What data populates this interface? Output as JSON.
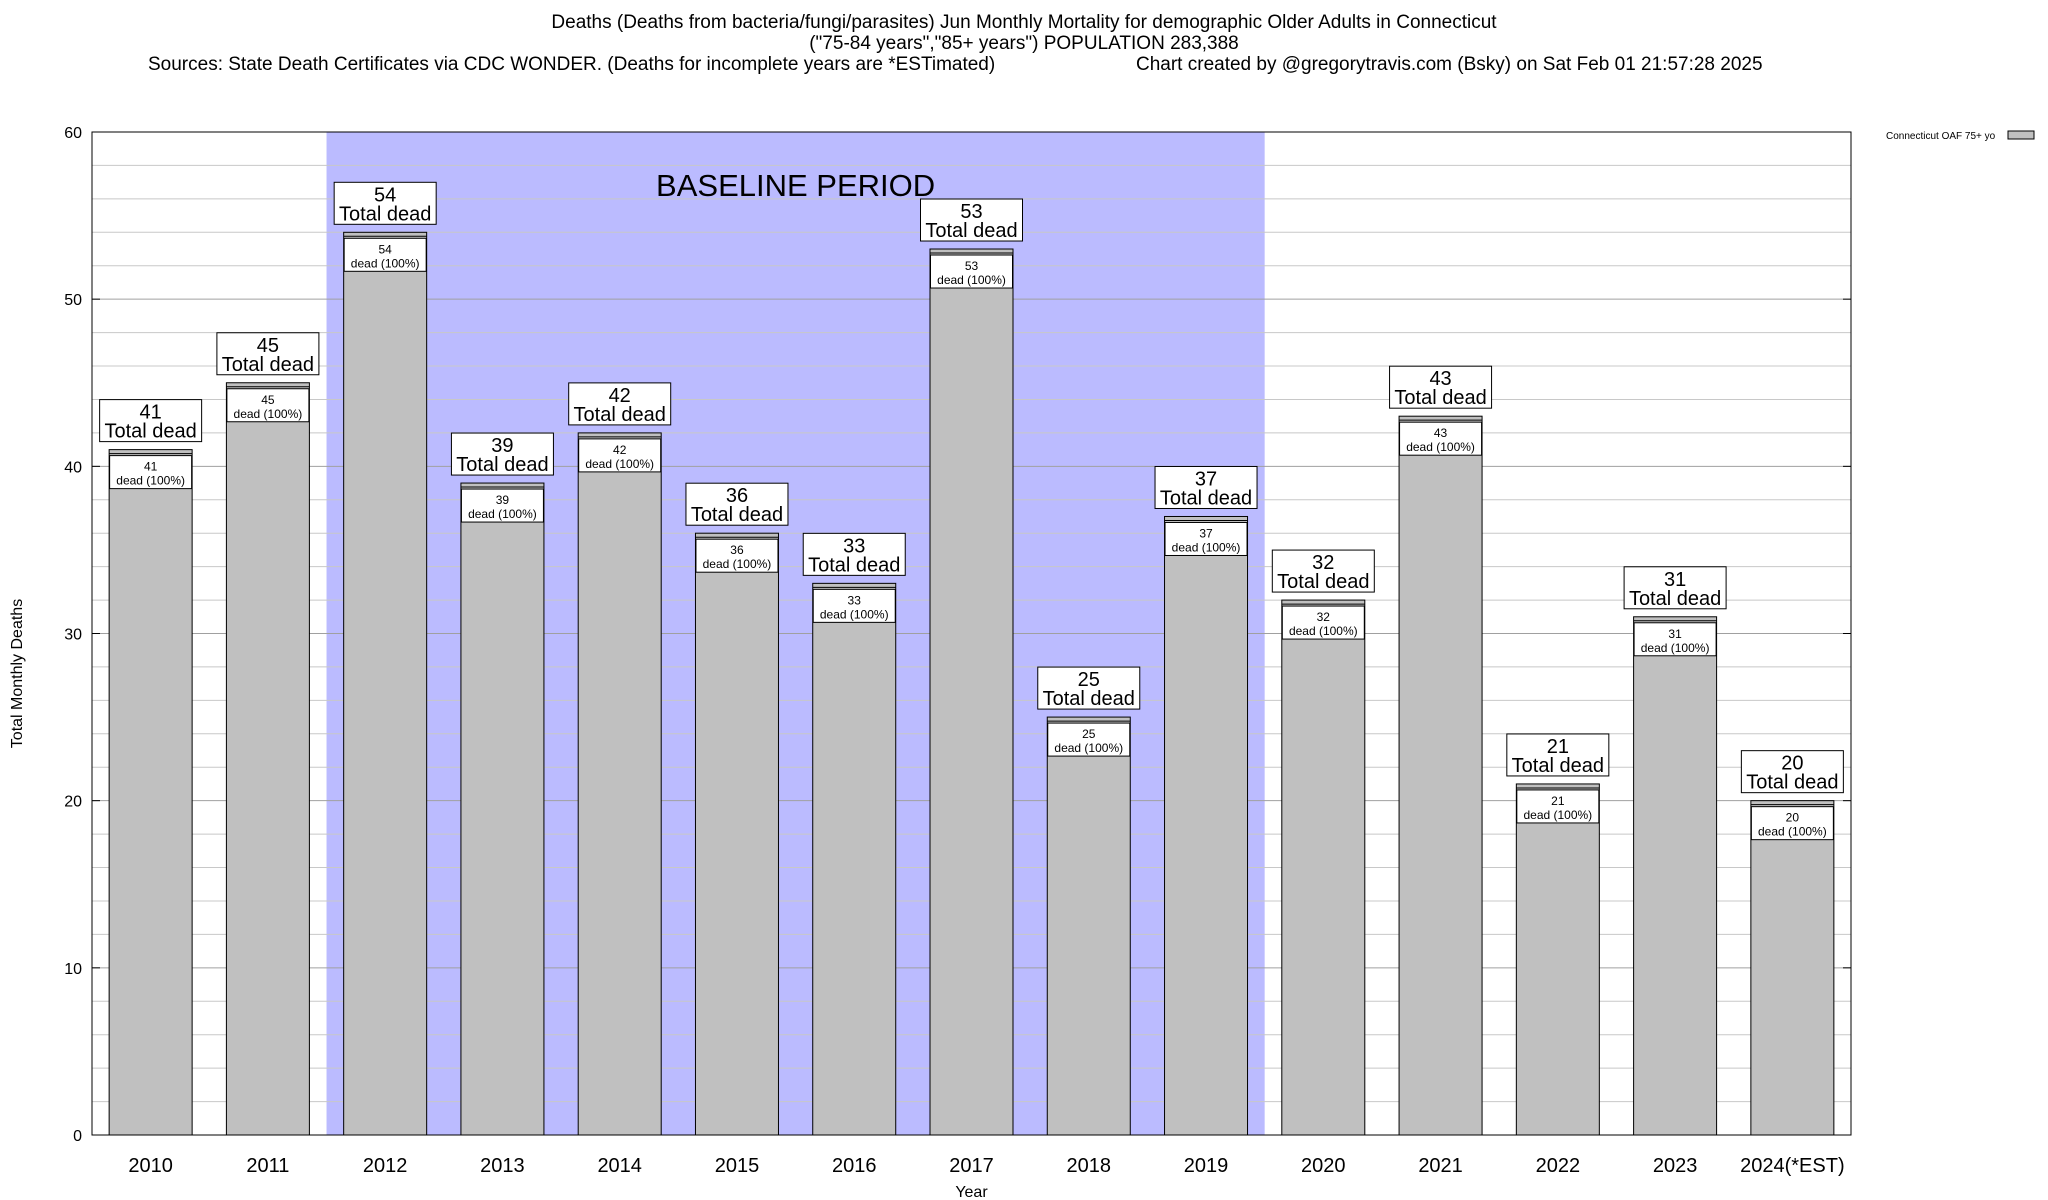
{
  "header": {
    "title_line1": "Deaths (Deaths from bacteria/fungi/parasites) Jun Monthly Mortality for demographic Older Adults in Connecticut",
    "title_line2": "(\"75-84 years\",\"85+ years\") POPULATION 283,388",
    "sources": "Sources: State Death Certificates via CDC WONDER. (Deaths for incomplete years are *ESTimated)",
    "credit": "Chart created by @gregorytravis.com (Bsky) on Sat Feb 01 21:57:28 2025"
  },
  "chart_data": {
    "type": "bar",
    "xlabel": "Year",
    "ylabel": "Total Monthly Deaths",
    "ylim": [
      0,
      60
    ],
    "yticks": [
      0,
      10,
      20,
      30,
      40,
      50,
      60
    ],
    "grid": true,
    "categories": [
      "2010",
      "2011",
      "2012",
      "2013",
      "2014",
      "2015",
      "2016",
      "2017",
      "2018",
      "2019",
      "2020",
      "2021",
      "2022",
      "2023",
      "2024(*EST)"
    ],
    "series": [
      {
        "name": "Connecticut OAF 75+ yo",
        "values": [
          41,
          45,
          54,
          39,
          42,
          36,
          33,
          53,
          25,
          37,
          32,
          43,
          21,
          31,
          20
        ],
        "color": "#c0c0c0"
      }
    ],
    "total_label_suffix": "Total dead",
    "inner_label_suffix": "dead (100%)",
    "baseline": {
      "label": "BASELINE PERIOD",
      "from": "2012",
      "to": "2019",
      "color": "#bbbbff"
    },
    "legend_position": "top-right"
  }
}
